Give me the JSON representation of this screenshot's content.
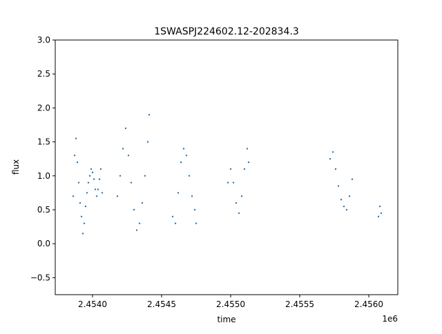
{
  "chart_data": {
    "type": "scatter",
    "title": "1SWASPJ224602.12-202834.3",
    "xlabel": "time",
    "ylabel": "flux",
    "x_offset_label": "1e6",
    "xlim": [
      2.45373,
      2.45621
    ],
    "ylim": [
      -0.75,
      3.0
    ],
    "x_ticks": [
      2.454,
      2.4545,
      2.455,
      2.4555,
      2.456
    ],
    "x_tick_labels": [
      "2.4540",
      "2.4545",
      "2.4550",
      "2.4555",
      "2.4560"
    ],
    "y_ticks": [
      -0.5,
      0.0,
      0.5,
      1.0,
      1.5,
      2.0,
      2.5,
      3.0
    ],
    "y_tick_labels": [
      "−0.5",
      "0.0",
      "0.5",
      "1.0",
      "1.5",
      "2.0",
      "2.5",
      "3.0"
    ],
    "grid": false,
    "marker_color": "#1f77b4",
    "series": [
      {
        "x": [
          2.45386,
          2.45387,
          2.45388,
          2.45389,
          2.4539,
          2.45391,
          2.45392,
          2.45393,
          2.45394,
          2.45395,
          2.45396,
          2.45397,
          2.45398,
          2.45399,
          2.454,
          2.45401,
          2.45402,
          2.45403,
          2.45404,
          2.45405,
          2.45406,
          2.45407,
          2.45418,
          2.4542,
          2.45422,
          2.45424,
          2.45426,
          2.45428,
          2.4543,
          2.45432,
          2.45434,
          2.45436,
          2.45438,
          2.4544,
          2.45441,
          2.45458,
          2.4546,
          2.45462,
          2.45464,
          2.45466,
          2.45468,
          2.4547,
          2.45472,
          2.45474,
          2.45475,
          2.45498,
          2.455,
          2.45502,
          2.45504,
          2.45506,
          2.45508,
          2.4551,
          2.45512,
          2.45513,
          2.45572,
          2.45574,
          2.45576,
          2.45578,
          2.4558,
          2.45582,
          2.45584,
          2.45586,
          2.45588,
          2.45607,
          2.45608,
          2.45609
        ],
        "y": [
          0.7,
          1.3,
          1.55,
          1.2,
          0.9,
          0.6,
          0.4,
          0.15,
          0.3,
          0.55,
          0.75,
          0.9,
          1.0,
          1.1,
          1.05,
          0.95,
          0.8,
          0.7,
          0.8,
          0.95,
          1.1,
          0.75,
          0.7,
          1.0,
          1.4,
          1.7,
          1.3,
          0.9,
          0.5,
          0.2,
          0.3,
          0.6,
          1.0,
          1.5,
          1.9,
          0.4,
          0.3,
          0.75,
          1.2,
          1.4,
          1.3,
          1.0,
          0.7,
          0.5,
          0.3,
          0.9,
          1.1,
          0.9,
          0.6,
          0.45,
          0.7,
          1.1,
          1.4,
          1.2,
          1.25,
          1.35,
          1.1,
          0.85,
          0.65,
          0.55,
          0.5,
          0.7,
          0.95,
          0.4,
          0.55,
          0.45
        ]
      }
    ]
  }
}
